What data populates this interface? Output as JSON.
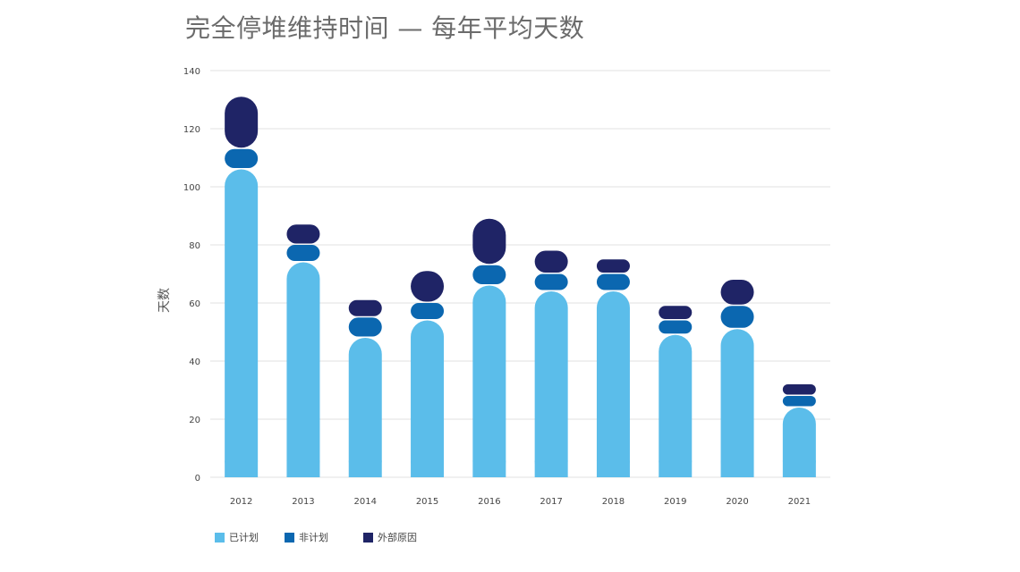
{
  "chart_data": {
    "type": "bar",
    "stacked": true,
    "title": "完全停堆维持时间 — 每年平均天数",
    "xlabel": "",
    "ylabel": "天数",
    "ylim": [
      0,
      140
    ],
    "yticks": [
      0,
      20,
      40,
      60,
      80,
      100,
      120,
      140
    ],
    "categories": [
      "2012",
      "2013",
      "2014",
      "2015",
      "2016",
      "2017",
      "2018",
      "2019",
      "2020",
      "2021"
    ],
    "series": [
      {
        "name": "已计划",
        "color": "#5bbdea",
        "values": [
          106,
          74,
          48,
          54,
          66,
          64,
          64,
          49,
          51,
          24
        ]
      },
      {
        "name": "非计划",
        "color": "#0b67b0",
        "values": [
          7,
          6,
          7,
          6,
          7,
          6,
          6,
          5,
          8,
          4
        ]
      },
      {
        "name": "外部原因",
        "color": "#1f2466",
        "values": [
          18,
          7,
          6,
          11,
          16,
          8,
          5,
          5,
          9,
          4
        ]
      }
    ],
    "legend_position": "bottom-left",
    "grid": true
  }
}
